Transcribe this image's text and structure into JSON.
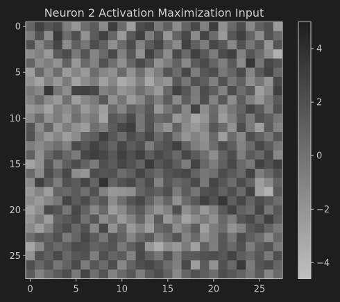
{
  "chart_data": {
    "type": "heatmap",
    "title": "Neuron 2 Activation Maximization Input",
    "xlabel": "",
    "ylabel": "",
    "rows": 28,
    "cols": 28,
    "x_ticks": [
      0,
      5,
      10,
      15,
      20,
      25
    ],
    "y_ticks": [
      0,
      5,
      10,
      15,
      20,
      25
    ],
    "colorbar": {
      "ticks": [
        4,
        2,
        0,
        -2,
        -4
      ],
      "tick_labels": [
        "4",
        "2",
        "0",
        "−2",
        "−4"
      ],
      "vmin": -4.6,
      "vmax": 5.0,
      "colormap": "gray_r",
      "min_color": "#c0c0c0",
      "max_color": "#1e1e1e"
    },
    "values": [
      [
        0.8,
        2.9,
        1.7,
        2.4,
        -0.6,
        -2.1,
        0.3,
        1.4,
        -1.4,
        3.1,
        0.5,
        -2.6,
        2.2,
        2.8,
        -0.4,
        1.2,
        -1.5,
        0.9,
        2.6,
        -0.8,
        3.2,
        -1.8,
        0.6,
        2.3,
        -1.2,
        1.1,
        2.0,
        -2.4
      ],
      [
        -0.5,
        1.9,
        -1.6,
        3.4,
        0.3,
        2.1,
        -1.9,
        1.4,
        2.9,
        0.7,
        -2.3,
        1.5,
        3.0,
        -0.6,
        1.8,
        -2.1,
        0.9,
        2.5,
        -1.4,
        2.7,
        0.4,
        -2.2,
        1.6,
        3.0,
        0.8,
        -1.6,
        1.9,
        0.5
      ],
      [
        1.9,
        -1.2,
        0.6,
        2.7,
        -1.5,
        1.1,
        -0.3,
        2.2,
        1.0,
        -1.7,
        0.4,
        2.3,
        -0.9,
        1.3,
        2.6,
        0.2,
        -1.4,
        3.0,
        1.1,
        -0.6,
        2.6,
        1.5,
        -1.2,
        2.0,
        -0.3,
        1.4,
        -2.0,
        1.8
      ],
      [
        -1.6,
        -0.8,
        -2.3,
        1.5,
        2.3,
        -0.4,
        1.8,
        -1.1,
        0.5,
        2.4,
        -0.9,
        1.6,
        -1.9,
        2.8,
        0.9,
        -1.6,
        2.4,
        0.6,
        2.9,
        1.5,
        -0.5,
        2.3,
        3.0,
        -0.9,
        1.7,
        0.4,
        -1.6,
        -3.6
      ],
      [
        0.9,
        -1.5,
        -0.7,
        -1.9,
        1.0,
        -2.2,
        0.6,
        -1.0,
        1.9,
        0.2,
        -1.7,
        0.7,
        2.4,
        1.1,
        -1.9,
        -0.6,
        1.0,
        -1.3,
        1.3,
        2.4,
        0.8,
        -0.7,
        1.5,
        -1.4,
        3.6,
        -0.2,
        2.6,
        1.8
      ],
      [
        -2.6,
        0.6,
        -1.5,
        0.3,
        -2.4,
        -1.1,
        -2.3,
        0.3,
        -1.2,
        -1.8,
        0.5,
        -1.9,
        0.2,
        -2.1,
        -0.7,
        1.8,
        0.3,
        2.6,
        -0.6,
        1.7,
        2.2,
        -0.4,
        0.8,
        2.4,
        -1.1,
        1.5,
        2.8,
        0.6
      ],
      [
        -1.8,
        -2.9,
        -0.9,
        -2.2,
        -0.5,
        -2.8,
        -1.5,
        -0.6,
        -2.7,
        -1.2,
        -3.3,
        -2.5,
        -0.8,
        -3.1,
        -1.4,
        -2.0,
        1.5,
        -0.3,
        2.0,
        1.2,
        -0.8,
        1.9,
        -0.2,
        1.1,
        -1.6,
        -0.3,
        -2.0,
        2.4
      ],
      [
        -0.4,
        -1.2,
        3.6,
        -0.2,
        -1.6,
        2.8,
        3.0,
        2.6,
        -0.9,
        -0.3,
        -2.0,
        -1.4,
        0.2,
        -1.0,
        -2.3,
        0.6,
        2.9,
        1.6,
        -0.5,
        2.3,
        1.2,
        -0.9,
        2.2,
        0.3,
        1.5,
        -2.6,
        -1.3,
        3.0
      ],
      [
        -0.9,
        0.4,
        -1.4,
        -2.2,
        0.1,
        -2.6,
        -1.3,
        -0.5,
        1.5,
        -1.9,
        -0.2,
        -2.4,
        -1.3,
        0.8,
        -0.7,
        1.3,
        -1.4,
        1.2,
        -0.6,
        2.1,
        -1.0,
        1.6,
        -1.5,
        1.2,
        -0.8,
        -2.1,
        -0.4,
        1.5
      ],
      [
        -2.1,
        -1.5,
        -2.9,
        -0.7,
        -1.6,
        -0.3,
        -2.3,
        -1.0,
        -2.6,
        0.4,
        -1.1,
        1.0,
        0.2,
        1.5,
        -2.1,
        -0.2,
        1.2,
        -1.2,
        2.8,
        -1.6,
        0.5,
        -1.9,
        -0.3,
        0.9,
        2.6,
        1.4,
        -0.7,
        2.0
      ],
      [
        -1.2,
        0.5,
        -1.8,
        -0.6,
        -2.1,
        0.2,
        -1.3,
        -0.4,
        -2.8,
        1.6,
        0.9,
        2.4,
        -0.3,
        1.8,
        0.6,
        1.0,
        -2.2,
        -1.1,
        -3.0,
        -2.0,
        0.7,
        -2.4,
        -0.8,
        1.3,
        -0.5,
        2.0,
        1.2,
        -0.3
      ],
      [
        1.8,
        -1.4,
        0.8,
        -2.2,
        -0.7,
        -1.8,
        -2.5,
        0.2,
        -0.7,
        1.4,
        2.5,
        3.1,
        -0.3,
        1.9,
        -0.6,
        -1.9,
        0.9,
        -1.5,
        -2.2,
        -1.2,
        1.6,
        0.4,
        -1.8,
        2.2,
        -0.5,
        -2.6,
        1.4,
        -0.9
      ],
      [
        2.0,
        -0.8,
        -2.2,
        -1.1,
        -2.6,
        -1.5,
        0.8,
        1.2,
        3.0,
        1.6,
        0.3,
        2.2,
        1.3,
        2.6,
        0.5,
        1.8,
        -0.4,
        -2.0,
        -1.0,
        -1.8,
        0.6,
        -2.6,
        0.4,
        -1.2,
        2.1,
        1.0,
        -0.3,
        1.7
      ],
      [
        -0.6,
        -1.4,
        -0.6,
        0.2,
        -1.0,
        2.4,
        1.6,
        2.8,
        2.0,
        0.9,
        2.6,
        1.3,
        2.1,
        -0.5,
        1.4,
        2.0,
        3.0,
        1.0,
        -0.7,
        -1.6,
        0.3,
        2.2,
        1.2,
        -1.0,
        0.5,
        2.5,
        1.3,
        -0.3
      ],
      [
        1.1,
        -1.8,
        0.7,
        1.9,
        0.6,
        -0.5,
        2.5,
        3.1,
        2.6,
        1.5,
        3.0,
        2.0,
        2.9,
        1.2,
        2.4,
        1.8,
        0.6,
        2.6,
        1.4,
        0.2,
        -1.6,
        0.9,
        2.2,
        -0.7,
        1.4,
        0.5,
        2.3,
        -1.2
      ],
      [
        -2.8,
        -1.8,
        1.8,
        -0.7,
        1.2,
        2.3,
        1.0,
        -0.4,
        2.1,
        1.4,
        2.6,
        1.9,
        0.9,
        3.3,
        1.6,
        2.4,
        1.2,
        -0.6,
        2.8,
        0.7,
        -0.6,
        1.1,
        2.5,
        0.6,
        -0.4,
        2.9,
        1.9,
        3.0
      ],
      [
        0.6,
        -1.5,
        2.2,
        0.8,
        2.5,
        -1.6,
        -2.0,
        2.2,
        1.8,
        2.0,
        0.3,
        1.1,
        2.7,
        1.4,
        0.5,
        1.8,
        2.2,
        2.6,
        0.9,
        -0.3,
        0.2,
        2.3,
        1.5,
        0.6,
        2.8,
        -0.6,
        0.6,
        2.0
      ],
      [
        -1.4,
        2.9,
        1.3,
        -0.6,
        2.0,
        1.4,
        2.7,
        0.8,
        3.8,
        0.9,
        1.9,
        2.5,
        1.0,
        2.2,
        -0.9,
        1.6,
        0.6,
        1.2,
        2.4,
        -0.4,
        2.7,
        1.6,
        0.4,
        2.3,
        1.0,
        -2.6,
        -1.4,
        0.9
      ],
      [
        -2.2,
        -1.1,
        -2.6,
        0.9,
        0.6,
        1.4,
        0.2,
        1.9,
        -0.9,
        -2.2,
        -2.0,
        -1.7,
        0.8,
        1.7,
        1.1,
        2.1,
        -0.5,
        1.3,
        -0.3,
        2.0,
        2.3,
        1.0,
        2.1,
        0.5,
        2.8,
        -2.7,
        -3.7,
        1.5
      ],
      [
        -1.6,
        -2.3,
        -1.2,
        -0.3,
        2.7,
        1.3,
        2.3,
        0.6,
        1.6,
        -1.5,
        0.2,
        1.8,
        2.6,
        0.9,
        -0.8,
        0.8,
        -1.8,
        0.4,
        1.5,
        3.0,
        1.9,
        3.5,
        1.2,
        2.6,
        0.9,
        2.2,
        1.4,
        0.3
      ],
      [
        -2.8,
        -1.6,
        2.4,
        1.8,
        -0.3,
        2.6,
        1.0,
        -1.2,
        0.6,
        -2.4,
        -1.4,
        0.5,
        1.5,
        -0.6,
        -2.0,
        -0.9,
        2.1,
        -1.7,
        -0.3,
        -2.2,
        -0.9,
        1.4,
        2.8,
        1.0,
        0.4,
        2.7,
        -0.2,
        1.6
      ],
      [
        -2.0,
        -0.6,
        -2.5,
        1.0,
        1.5,
        2.3,
        0.1,
        1.6,
        -1.5,
        -0.3,
        -2.3,
        -1.0,
        0.8,
        -1.8,
        1.4,
        -2.2,
        -0.7,
        -2.8,
        -1.6,
        -0.5,
        -1.8,
        0.6,
        -0.8,
        1.7,
        2.4,
        0.9,
        3.0,
        1.2
      ],
      [
        -1.4,
        -2.6,
        -0.9,
        1.4,
        2.2,
        0.6,
        1.9,
        -1.2,
        2.5,
        -1.9,
        0.5,
        -2.3,
        -0.9,
        -2.5,
        0.6,
        1.2,
        -1.6,
        -0.4,
        1.3,
        -2.6,
        -0.6,
        0.3,
        -1.9,
        -0.9,
        1.5,
        2.2,
        0.8,
        -0.4
      ],
      [
        0.3,
        1.5,
        0.9,
        2.0,
        -0.5,
        0.8,
        2.5,
        1.4,
        -0.3,
        1.9,
        0.9,
        -1.1,
        0.6,
        1.5,
        -0.8,
        0.4,
        1.8,
        -1.0,
        0.5,
        -1.7,
        -0.6,
        1.6,
        -0.3,
        2.3,
        1.1,
        0.3,
        -1.5,
        0.7
      ],
      [
        -3.0,
        -1.2,
        1.5,
        0.6,
        1.2,
        2.3,
        2.1,
        0.9,
        1.3,
        1.8,
        -0.4,
        1.1,
        2.2,
        -2.1,
        -3.4,
        -1.6,
        -2.2,
        -0.5,
        -2.7,
        0.9,
        -0.7,
        1.7,
        0.6,
        2.0,
        -0.6,
        1.2,
        1.9,
        -0.4
      ],
      [
        -1.8,
        2.0,
        1.1,
        2.4,
        0.7,
        1.6,
        2.0,
        -0.6,
        2.1,
        0.8,
        1.4,
        -1.0,
        2.4,
        1.0,
        -0.3,
        1.9,
        -0.6,
        1.4,
        1.5,
        2.0,
        2.2,
        1.6,
        2.8,
        1.2,
        0.5,
        1.7,
        -0.4,
        2.1
      ],
      [
        2.1,
        0.6,
        1.8,
        -0.3,
        0.9,
        2.4,
        -0.5,
        1.6,
        0.4,
        2.2,
        -1.3,
        0.9,
        2.1,
        2.6,
        1.8,
        0.3,
        -0.8,
        2.5,
        -2.6,
        1.3,
        -1.9,
        2.0,
        0.6,
        3.4,
        -0.5,
        1.7,
        2.3,
        0.8
      ],
      [
        1.4,
        -0.9,
        0.4,
        1.3,
        2.2,
        -0.4,
        2.7,
        0.2,
        1.8,
        -0.9,
        0.5,
        1.6,
        -0.6,
        1.4,
        2.2,
        1.0,
        -1.3,
        0.8,
        2.0,
        1.2,
        0.3,
        2.2,
        1.6,
        0.9,
        -0.2,
        1.4,
        -1.1,
        0.5
      ]
    ]
  }
}
